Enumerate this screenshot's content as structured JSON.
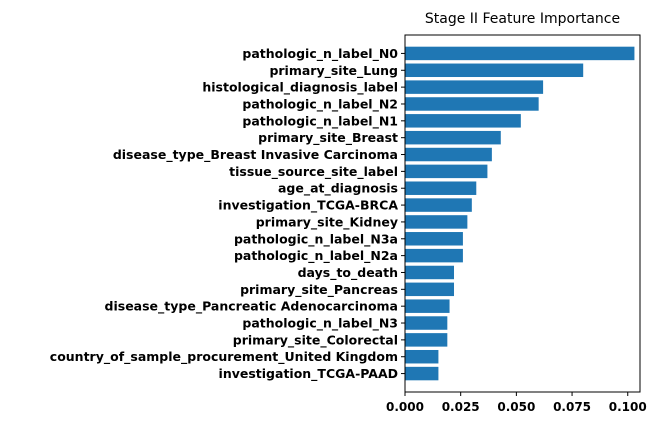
{
  "chart_data": {
    "type": "bar",
    "orientation": "horizontal",
    "title": "Stage II Feature Importance",
    "xlabel": "",
    "ylabel": "",
    "categories": [
      "pathologic_n_label_N0",
      "primary_site_Lung",
      "histological_diagnosis_label",
      "pathologic_n_label_N2",
      "pathologic_n_label_N1",
      "primary_site_Breast",
      "disease_type_Breast Invasive Carcinoma",
      "tissue_source_site_label",
      "age_at_diagnosis",
      "investigation_TCGA-BRCA",
      "primary_site_Kidney",
      "pathologic_n_label_N3a",
      "pathologic_n_label_N2a",
      "days_to_death",
      "primary_site_Pancreas",
      "disease_type_Pancreatic Adenocarcinoma",
      "pathologic_n_label_N3",
      "primary_site_Colorectal",
      "country_of_sample_procurement_United Kingdom",
      "investigation_TCGA-PAAD"
    ],
    "values": [
      0.103,
      0.08,
      0.062,
      0.06,
      0.052,
      0.043,
      0.039,
      0.037,
      0.032,
      0.03,
      0.028,
      0.026,
      0.026,
      0.022,
      0.022,
      0.02,
      0.019,
      0.019,
      0.015,
      0.015
    ],
    "xlim": [
      0,
      0.1055
    ],
    "xticks": [
      0.0,
      0.025,
      0.05,
      0.075,
      0.1
    ],
    "xtick_labels": [
      "0.000",
      "0.025",
      "0.050",
      "0.075",
      "0.100"
    ],
    "grid": false,
    "legend": "none",
    "bar_color": "#1f77b4"
  }
}
